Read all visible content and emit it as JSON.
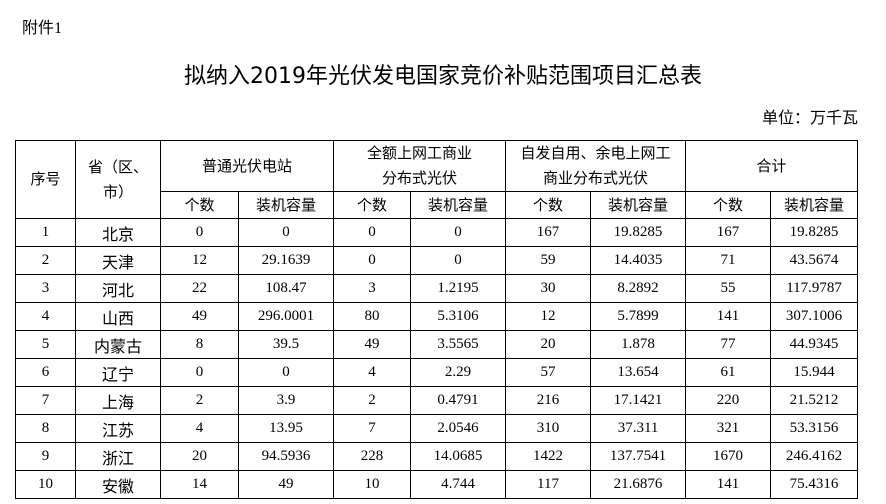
{
  "attachment_label": "附件1",
  "title": "拟纳入2019年光伏发电国家竞价补贴范围项目汇总表",
  "unit": "单位：万千瓦",
  "table": {
    "headers": {
      "index": "序号",
      "province": "省（区、市）",
      "group1": "普通光伏电站",
      "group2": "全额上网工商业分布式光伏",
      "group3": "自发自用、余电上网工商业分布式光伏",
      "group4": "合计",
      "count": "个数",
      "capacity": "装机容量"
    },
    "rows": [
      [
        "1",
        "北京",
        "0",
        "0",
        "0",
        "0",
        "167",
        "19.8285",
        "167",
        "19.8285"
      ],
      [
        "2",
        "天津",
        "12",
        "29.1639",
        "0",
        "0",
        "59",
        "14.4035",
        "71",
        "43.5674"
      ],
      [
        "3",
        "河北",
        "22",
        "108.47",
        "3",
        "1.2195",
        "30",
        "8.2892",
        "55",
        "117.9787"
      ],
      [
        "4",
        "山西",
        "49",
        "296.0001",
        "80",
        "5.3106",
        "12",
        "5.7899",
        "141",
        "307.1006"
      ],
      [
        "5",
        "内蒙古",
        "8",
        "39.5",
        "49",
        "3.5565",
        "20",
        "1.878",
        "77",
        "44.9345"
      ],
      [
        "6",
        "辽宁",
        "0",
        "0",
        "4",
        "2.29",
        "57",
        "13.654",
        "61",
        "15.944"
      ],
      [
        "7",
        "上海",
        "2",
        "3.9",
        "2",
        "0.4791",
        "216",
        "17.1421",
        "220",
        "21.5212"
      ],
      [
        "8",
        "江苏",
        "4",
        "13.95",
        "7",
        "2.0546",
        "310",
        "37.311",
        "321",
        "53.3156"
      ],
      [
        "9",
        "浙江",
        "20",
        "94.5936",
        "228",
        "14.0685",
        "1422",
        "137.7541",
        "1670",
        "246.4162"
      ],
      [
        "10",
        "安徽",
        "14",
        "49",
        "10",
        "4.744",
        "117",
        "21.6876",
        "141",
        "75.4316"
      ]
    ]
  }
}
